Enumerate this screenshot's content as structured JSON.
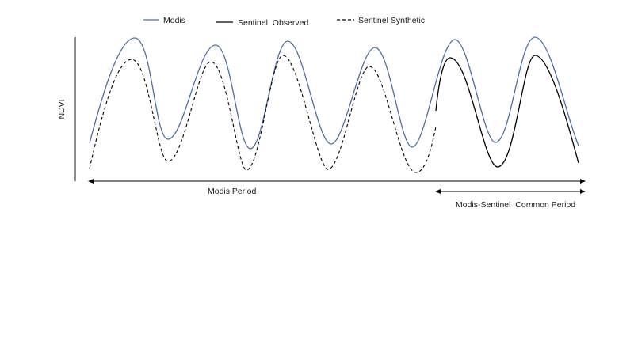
{
  "legend": {
    "modis": "Modis",
    "sentinel_observed": "Sentinel  Observed",
    "sentinel_synthetic": "Sentinel Synthetic"
  },
  "y_axis_label": "NDVI",
  "periods": {
    "modis_period": "Modis Period",
    "common_period": "Modis-Sentinel  Common Period"
  },
  "colors": {
    "modis": "#4a6fa5",
    "sentinel_observed": "#000000",
    "sentinel_synthetic": "#000000"
  },
  "chart_data": {
    "type": "line",
    "ylabel": "NDVI",
    "series": [
      {
        "name": "Modis",
        "style": "solid",
        "cycles": 6
      },
      {
        "name": "Sentinel  Observed",
        "style": "solid",
        "cycles": 2
      },
      {
        "name": "Sentinel Synthetic",
        "style": "dashed",
        "cycles": 4
      }
    ]
  }
}
